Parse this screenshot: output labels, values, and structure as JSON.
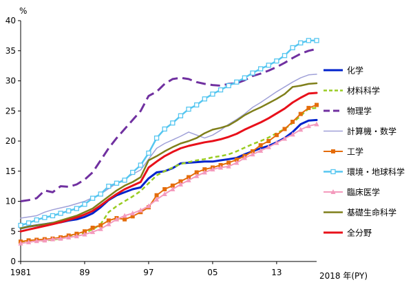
{
  "chart_data": {
    "type": "line",
    "y_unit": "%",
    "x_end_label": "2018 年(PY)",
    "ylim": [
      0,
      40
    ],
    "yticks": [
      0,
      5,
      10,
      15,
      20,
      25,
      30,
      35,
      40
    ],
    "xlim": [
      1981,
      2018
    ],
    "xticks": [
      {
        "value": 1981,
        "label": "1981"
      },
      {
        "value": 1989,
        "label": "89"
      },
      {
        "value": 1997,
        "label": "97"
      },
      {
        "value": 2005,
        "label": "05"
      },
      {
        "value": 2013,
        "label": "13"
      }
    ],
    "grid": false,
    "legend_position": "right",
    "x": [
      1981,
      1982,
      1983,
      1984,
      1985,
      1986,
      1987,
      1988,
      1989,
      1990,
      1991,
      1992,
      1993,
      1994,
      1995,
      1996,
      1997,
      1998,
      1999,
      2000,
      2001,
      2002,
      2003,
      2004,
      2005,
      2006,
      2007,
      2008,
      2009,
      2010,
      2011,
      2012,
      2013,
      2014,
      2015,
      2016,
      2017,
      2018
    ],
    "series": [
      {
        "name": "化学",
        "color": "#0022CC",
        "dash": "solid",
        "width": 3,
        "marker": "none",
        "values": [
          5.5,
          5.8,
          6.0,
          6.2,
          6.4,
          6.5,
          6.8,
          7.0,
          7.4,
          8.0,
          9.0,
          10.2,
          11.0,
          11.5,
          12.0,
          12.3,
          13.8,
          14.8,
          15.0,
          15.5,
          16.3,
          16.4,
          16.5,
          16.6,
          16.6,
          16.8,
          17.0,
          17.2,
          17.8,
          18.3,
          18.8,
          19.2,
          19.8,
          20.5,
          21.5,
          22.8,
          23.4,
          23.5
        ]
      },
      {
        "name": "材料科学",
        "color": "#99CC22",
        "dash": "dashed",
        "width": 2.5,
        "marker": "none",
        "values": [
          3.3,
          3.4,
          3.4,
          3.5,
          3.6,
          3.8,
          4.1,
          4.4,
          4.8,
          5.3,
          6.2,
          8.2,
          9.2,
          10.0,
          10.8,
          11.7,
          13.0,
          14.3,
          15.0,
          15.6,
          16.2,
          16.5,
          16.8,
          17.0,
          17.3,
          17.5,
          17.8,
          18.3,
          18.9,
          19.5,
          20.0,
          20.6,
          21.3,
          22.0,
          23.0,
          24.2,
          25.4,
          25.5
        ]
      },
      {
        "name": "物理学",
        "color": "#7030A0",
        "dash": "longdash",
        "width": 3,
        "marker": "none",
        "values": [
          10.0,
          10.2,
          10.5,
          11.8,
          11.5,
          12.5,
          12.4,
          12.8,
          13.6,
          14.8,
          16.8,
          18.8,
          20.5,
          22.0,
          23.5,
          25.0,
          27.5,
          28.2,
          29.5,
          30.3,
          30.5,
          30.3,
          29.8,
          29.5,
          29.3,
          29.2,
          29.5,
          29.6,
          30.1,
          30.8,
          31.2,
          31.7,
          32.3,
          33.0,
          33.8,
          34.5,
          35.0,
          35.3
        ]
      },
      {
        "name": "計算機・数学",
        "color": "#9FA0D8",
        "dash": "solid",
        "width": 1.5,
        "marker": "none",
        "values": [
          7.2,
          7.4,
          7.6,
          8.2,
          8.6,
          8.9,
          9.2,
          9.6,
          10.0,
          10.6,
          11.2,
          12.1,
          13.0,
          13.7,
          14.5,
          15.2,
          17.0,
          18.8,
          19.6,
          20.2,
          20.8,
          21.5,
          21.0,
          20.5,
          21.0,
          21.8,
          22.8,
          23.6,
          24.5,
          25.6,
          26.4,
          27.3,
          28.2,
          29.0,
          29.8,
          30.5,
          31.0,
          31.1
        ]
      },
      {
        "name": "工学",
        "color": "#E46C0A",
        "dash": "solid",
        "width": 2,
        "marker": "square",
        "values": [
          3.3,
          3.5,
          3.6,
          3.7,
          3.8,
          4.0,
          4.3,
          4.6,
          5.0,
          5.6,
          6.0,
          6.8,
          7.2,
          7.0,
          7.5,
          8.2,
          9.0,
          11.0,
          12.0,
          12.6,
          13.3,
          14.0,
          14.8,
          15.3,
          15.6,
          16.0,
          16.4,
          16.9,
          17.5,
          18.3,
          19.3,
          20.0,
          21.0,
          22.0,
          23.2,
          24.5,
          25.5,
          26.0
        ]
      },
      {
        "name": "環境・地球科学",
        "color": "#55C6F0",
        "dash": "solid",
        "width": 2.5,
        "marker": "square_open",
        "values": [
          6.0,
          6.4,
          6.9,
          7.3,
          7.6,
          8.0,
          8.4,
          8.8,
          9.5,
          10.5,
          11.2,
          12.5,
          13.0,
          13.5,
          14.8,
          16.0,
          18.0,
          20.5,
          22.0,
          23.0,
          24.2,
          25.3,
          26.0,
          27.0,
          27.8,
          28.5,
          29.2,
          29.8,
          30.5,
          31.3,
          32.0,
          32.6,
          33.3,
          34.2,
          35.5,
          36.3,
          36.7,
          36.7
        ]
      },
      {
        "name": "臨床医学",
        "color": "#F49ABD",
        "dash": "solid",
        "width": 2,
        "marker": "triangle",
        "values": [
          3.0,
          3.2,
          3.4,
          3.5,
          3.7,
          3.8,
          4.0,
          4.2,
          4.5,
          4.9,
          5.4,
          6.2,
          7.0,
          7.6,
          8.0,
          8.5,
          9.2,
          10.3,
          11.2,
          12.0,
          12.8,
          13.5,
          14.2,
          14.8,
          15.3,
          15.6,
          15.8,
          16.4,
          17.2,
          17.8,
          18.4,
          19.0,
          19.7,
          20.4,
          21.1,
          21.9,
          22.5,
          22.8
        ]
      },
      {
        "name": "基礎生命科学",
        "color": "#7F7F1A",
        "dash": "solid",
        "width": 2.5,
        "marker": "none",
        "values": [
          5.5,
          5.8,
          6.0,
          6.2,
          6.4,
          6.8,
          7.2,
          7.6,
          8.2,
          8.8,
          9.8,
          10.8,
          11.8,
          12.6,
          13.2,
          14.0,
          16.8,
          17.5,
          18.3,
          19.0,
          19.6,
          20.0,
          20.5,
          21.3,
          21.9,
          22.2,
          22.6,
          23.4,
          24.3,
          25.0,
          25.6,
          26.3,
          27.0,
          27.8,
          29.0,
          29.2,
          29.5,
          29.6
        ]
      },
      {
        "name": "全分野",
        "color": "#E8101A",
        "dash": "solid",
        "width": 3,
        "marker": "none",
        "values": [
          5.0,
          5.3,
          5.6,
          5.9,
          6.2,
          6.5,
          6.9,
          7.3,
          7.8,
          8.4,
          9.3,
          10.3,
          11.2,
          12.0,
          12.6,
          13.2,
          15.6,
          16.6,
          17.5,
          18.2,
          18.8,
          19.2,
          19.5,
          19.8,
          20.0,
          20.3,
          20.7,
          21.2,
          21.9,
          22.5,
          23.1,
          23.8,
          24.6,
          25.4,
          26.4,
          27.2,
          27.9,
          28.0
        ]
      }
    ]
  }
}
